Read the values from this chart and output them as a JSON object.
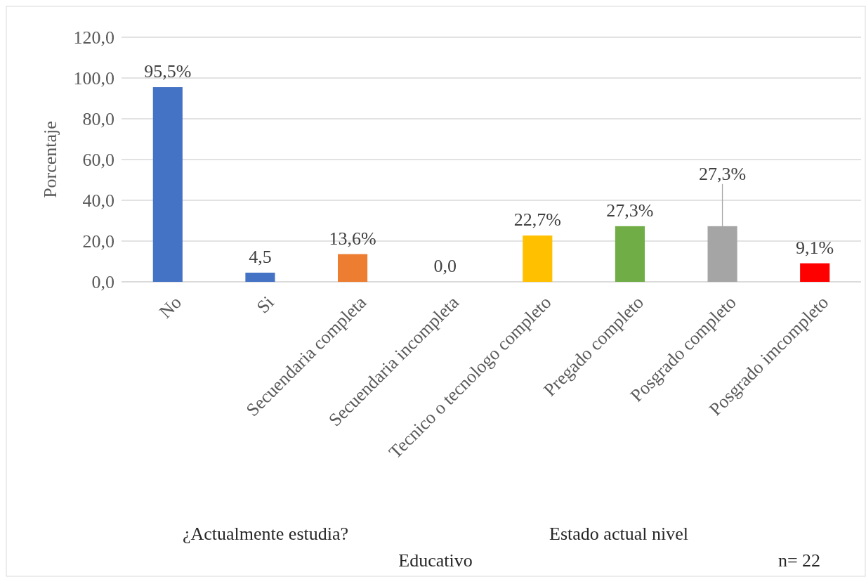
{
  "chart_data": {
    "type": "bar",
    "ylabel": "Porcentaje",
    "categories": [
      "No",
      "Si",
      "Secuendaria completa",
      "Secuendaria incompleta",
      "Tecnico o tecnologo completo",
      "Pregado completo",
      "Posgrado completo",
      "Posgrado imcompleto"
    ],
    "values": [
      95.5,
      4.5,
      13.6,
      0.0,
      22.7,
      27.3,
      27.3,
      9.1
    ],
    "colors": [
      "#4472c4",
      "#4472c4",
      "#ed7d31",
      "#a5a5a5",
      "#ffc000",
      "#70ad47",
      "#a5a5a5",
      "#ff0000"
    ],
    "value_labels": [
      "95,5%",
      "4,5",
      "13,6%",
      "0,0",
      "22,7%",
      "27,3%",
      "27,3%",
      "9,1%"
    ],
    "ylim": [
      0,
      120
    ],
    "yticks": [
      {
        "value": 0,
        "label": "0,0"
      },
      {
        "value": 20,
        "label": "20,0"
      },
      {
        "value": 40,
        "label": "40,0"
      },
      {
        "value": 60,
        "label": "60,0"
      },
      {
        "value": 80,
        "label": "80,0"
      },
      {
        "value": 100,
        "label": "100,0"
      },
      {
        "value": 120,
        "label": "120,0"
      }
    ],
    "grid": "y",
    "annotations": [
      "¿Actualmente estudia?",
      "Estado actual nivel",
      "Educativo",
      "n= 22"
    ]
  }
}
